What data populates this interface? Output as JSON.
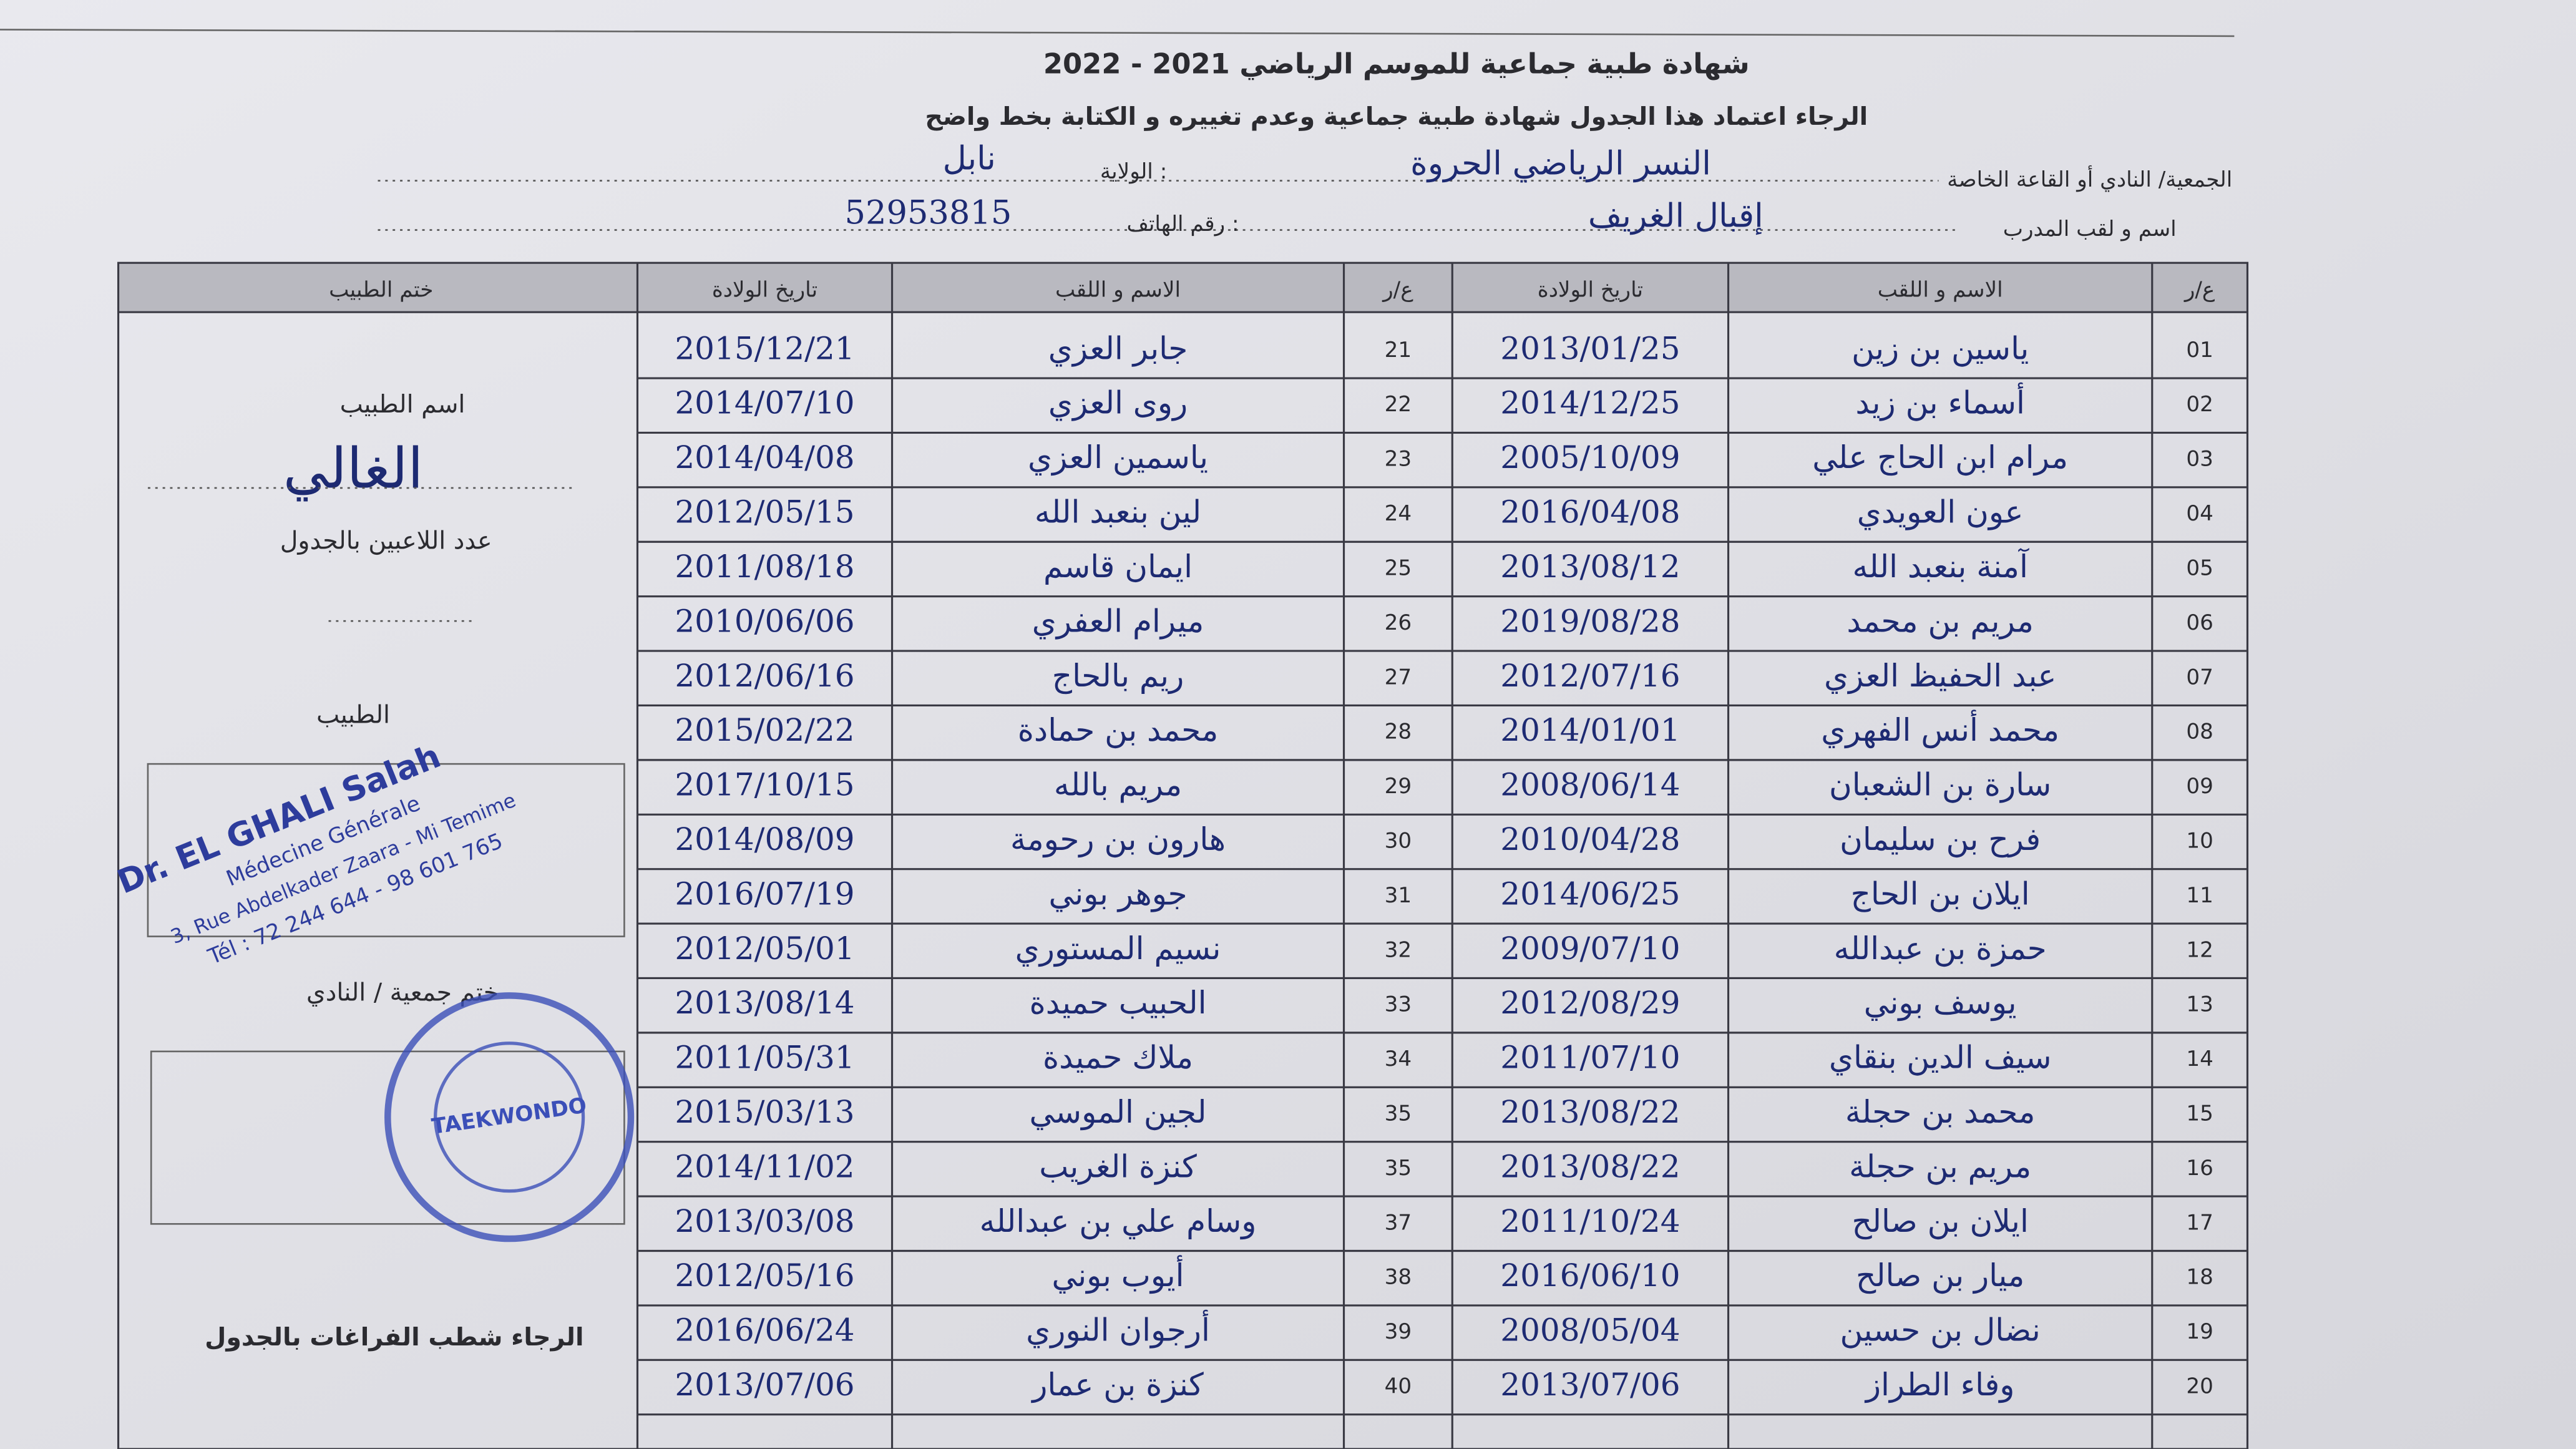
{
  "header": {
    "title": "شهادة طبية جماعية للموسم الرياضي 2021 - 2022",
    "subtitle": "الرجاء اعتماد هذا الجدول شهادة طبية جماعية وعدم تغييره و الكتابة بخط واضح",
    "fields": [
      {
        "label": "الجمعية/ النادي أو القاعة الخاصة",
        "value": "النسر الرياضي الحروة"
      },
      {
        "label": "الولاية :",
        "value": "نابل"
      },
      {
        "label": "اسم و لقب المدرب",
        "value": "إقبال الغريف"
      },
      {
        "label": "رقم الهاتف :",
        "value": "52953815"
      }
    ]
  },
  "table": {
    "columns": [
      "ع/ر",
      "الاسم و اللقب",
      "تاريخ الولادة",
      "ع/ر",
      "الاسم و اللقب",
      "تاريخ الولادة"
    ],
    "doctor_column": "ختم الطبيب",
    "rows": [
      [
        "01",
        "ياسين بن زين",
        "2013/01/25",
        "21",
        "جابر العزي",
        "2015/12/21"
      ],
      [
        "02",
        "أسماء بن زيد",
        "2014/12/25",
        "22",
        "روى العزي",
        "2014/07/10"
      ],
      [
        "03",
        "مرام ابن الحاج علي",
        "2005/10/09",
        "23",
        "ياسمين العزي",
        "2014/04/08"
      ],
      [
        "04",
        "عون العويدي",
        "2016/04/08",
        "24",
        "لين بنعبد الله",
        "2012/05/15"
      ],
      [
        "05",
        "آمنة بنعبد الله",
        "2013/08/12",
        "25",
        "ايمان قاسم",
        "2011/08/18"
      ],
      [
        "06",
        "مريم بن محمد",
        "2019/08/28",
        "26",
        "ميرام العفري",
        "2010/06/06"
      ],
      [
        "07",
        "عبد الحفيظ العزي",
        "2012/07/16",
        "27",
        "ريم بالحاج",
        "2012/06/16"
      ],
      [
        "08",
        "محمد أنس الفهري",
        "2014/01/01",
        "28",
        "محمد بن حمادة",
        "2015/02/22"
      ],
      [
        "09",
        "سارة بن الشعبان",
        "2008/06/14",
        "29",
        "مريم بالله",
        "2017/10/15"
      ],
      [
        "10",
        "فرح بن سليمان",
        "2010/04/28",
        "30",
        "هارون بن رحومة",
        "2014/08/09"
      ],
      [
        "11",
        "ايلان بن الحاج",
        "2014/06/25",
        "31",
        "جوهر بوني",
        "2016/07/19"
      ],
      [
        "12",
        "حمزة بن عبدالله",
        "2009/07/10",
        "32",
        "نسيم المستوري",
        "2012/05/01"
      ],
      [
        "13",
        "يوسف بوني",
        "2012/08/29",
        "33",
        "الحبيب حميدة",
        "2013/08/14"
      ],
      [
        "14",
        "سيف الدين بنقاي",
        "2011/07/10",
        "34",
        "ملاك حميدة",
        "2011/05/31"
      ],
      [
        "15",
        "محمد بن حجلة",
        "2013/08/22",
        "35",
        "لجين الموسي",
        "2015/03/13"
      ],
      [
        "16",
        "مريم بن حجلة",
        "2013/08/22",
        "35",
        "كنزة الغريب",
        "2014/11/02"
      ],
      [
        "17",
        "ايلان بن صالح",
        "2011/10/24",
        "37",
        "وسام علي بن عبدالله",
        "2013/03/08"
      ],
      [
        "18",
        "ميار بن صالح",
        "2016/06/10",
        "38",
        "أيوب بوني",
        "2012/05/16"
      ],
      [
        "19",
        "نضال بن حسين",
        "2008/05/04",
        "39",
        "أرجوان النوري",
        "2016/06/24"
      ],
      [
        "20",
        "وفاء الطراز",
        "2013/07/06",
        "40",
        "كنزة بن عمار",
        "2013/07/06"
      ]
    ]
  },
  "side_panel": {
    "doctor_name_label": "اسم الطبيب",
    "signature": "الغالي",
    "player_count_label": "عدد اللاعبين بالجدول",
    "doctor_sign_label": "الطبيب",
    "club_stamp_label": "ختم جمعية / النادي",
    "footer_note": "الرجاء شطب الفراغات بالجدول"
  },
  "doctor_stamp": {
    "lines": [
      "Dr. EL GHALI Salah",
      "Médecine Générale",
      "3, Rue Abdelkader Zaara - Mi Temime",
      "Tél : 72 244 644 - 98 601 765"
    ]
  },
  "club_stamp": {
    "text": "TAEKWONDO"
  }
}
